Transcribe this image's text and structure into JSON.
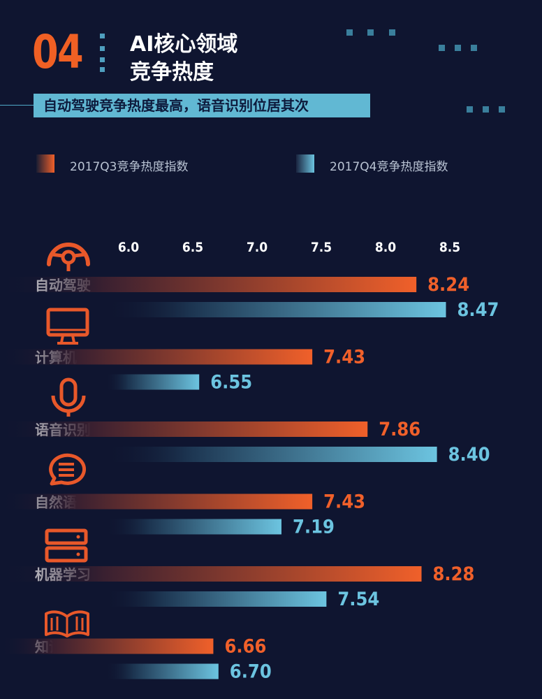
{
  "header": {
    "number": "04",
    "title_line1": "AI核心领域",
    "title_line2": "竞争热度",
    "subtitle": "自动驾驶竞争热度最高，语音识别位居其次"
  },
  "legend": [
    {
      "label": "2017Q3竞争热度指数",
      "color": "#f0602a"
    },
    {
      "label": "2017Q4竞争热度指数",
      "color": "#6cc4e0"
    }
  ],
  "colors": {
    "q3": "#f0602a",
    "q4": "#6cc4e0",
    "background": "#0f1530"
  },
  "icons": [
    "steering-wheel-icon",
    "monitor-icon",
    "microphone-icon",
    "chat-bubble-icon",
    "server-icon",
    "book-icon"
  ],
  "chart_data": {
    "type": "bar",
    "orientation": "horizontal",
    "categories": [
      "自动驾驶",
      "计算机视觉",
      "语音识别",
      "自然语言处理",
      "机器学习",
      "知识推理"
    ],
    "series": [
      {
        "name": "2017Q3竞争热度指数",
        "values": [
          8.24,
          7.43,
          7.86,
          7.43,
          8.28,
          6.66
        ]
      },
      {
        "name": "2017Q4竞争热度指数",
        "values": [
          8.47,
          6.55,
          8.4,
          7.19,
          7.54,
          6.7
        ]
      }
    ],
    "value_labels": [
      [
        "8.24",
        "7.43",
        "7.86",
        "7.43",
        "8.28",
        "6.66"
      ],
      [
        "8.47",
        "6.55",
        "8.40",
        "7.19",
        "7.54",
        "6.70"
      ]
    ],
    "ticks": [
      "6.0",
      "6.5",
      "7.0",
      "7.5",
      "8.0",
      "8.5"
    ],
    "xlim": [
      5.0,
      8.5
    ],
    "grid": false
  }
}
